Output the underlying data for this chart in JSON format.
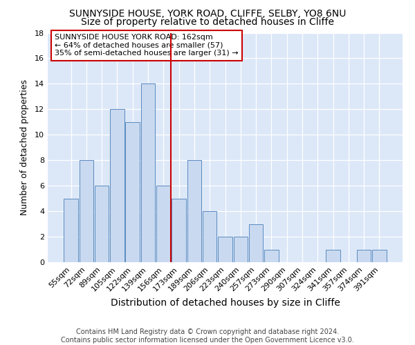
{
  "title1": "SUNNYSIDE HOUSE, YORK ROAD, CLIFFE, SELBY, YO8 6NU",
  "title2": "Size of property relative to detached houses in Cliffe",
  "xlabel": "Distribution of detached houses by size in Cliffe",
  "ylabel": "Number of detached properties",
  "categories": [
    "55sqm",
    "72sqm",
    "89sqm",
    "105sqm",
    "122sqm",
    "139sqm",
    "156sqm",
    "173sqm",
    "189sqm",
    "206sqm",
    "223sqm",
    "240sqm",
    "257sqm",
    "273sqm",
    "290sqm",
    "307sqm",
    "324sqm",
    "341sqm",
    "357sqm",
    "374sqm",
    "391sqm"
  ],
  "values": [
    5,
    8,
    6,
    12,
    11,
    14,
    6,
    5,
    8,
    4,
    2,
    2,
    3,
    1,
    0,
    0,
    0,
    1,
    0,
    1,
    1
  ],
  "bar_color": "#c9d9f0",
  "bar_edge_color": "#5a8bbf",
  "vline_x": 6.5,
  "vline_color": "#cc0000",
  "annotation_text": "SUNNYSIDE HOUSE YORK ROAD: 162sqm\n← 64% of detached houses are smaller (57)\n35% of semi-detached houses are larger (31) →",
  "annotation_box_color": "#ffffff",
  "annotation_box_edge": "#cc0000",
  "ylim": [
    0,
    18
  ],
  "yticks": [
    0,
    2,
    4,
    6,
    8,
    10,
    12,
    14,
    16,
    18
  ],
  "background_color": "#dce8f8",
  "grid_color": "#ffffff",
  "footer": "Contains HM Land Registry data © Crown copyright and database right 2024.\nContains public sector information licensed under the Open Government Licence v3.0.",
  "title1_fontsize": 10,
  "title2_fontsize": 10,
  "xlabel_fontsize": 10,
  "ylabel_fontsize": 9,
  "tick_fontsize": 8,
  "footer_fontsize": 7,
  "annot_fontsize": 8
}
